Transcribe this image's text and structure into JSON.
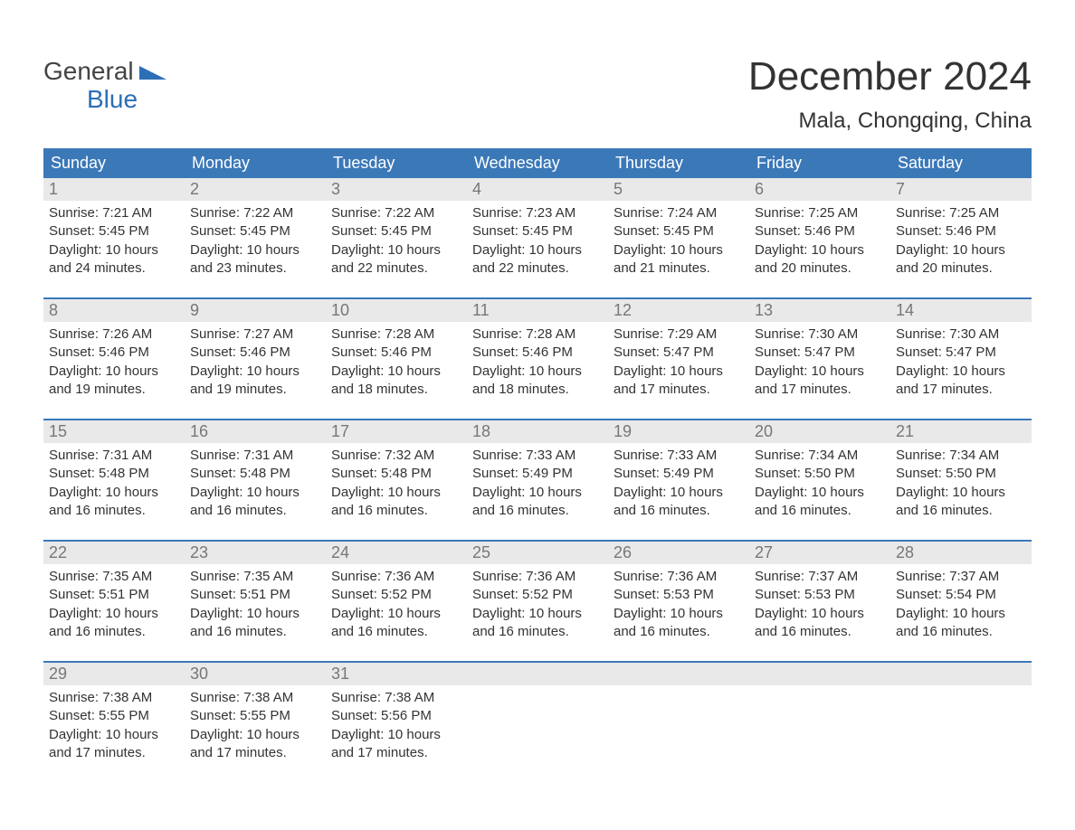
{
  "logo": {
    "text1": "General",
    "text2": "Blue"
  },
  "title": "December 2024",
  "location": "Mala, Chongqing, China",
  "colors": {
    "header_bg": "#3b78b8",
    "header_text": "#ffffff",
    "daynum_bg": "#e9e9e9",
    "daynum_text": "#777777",
    "body_text": "#333333",
    "logo_blue": "#2d6fb6"
  },
  "dayNames": [
    "Sunday",
    "Monday",
    "Tuesday",
    "Wednesday",
    "Thursday",
    "Friday",
    "Saturday"
  ],
  "weeks": [
    [
      {
        "n": "1",
        "sunrise": "Sunrise: 7:21 AM",
        "sunset": "Sunset: 5:45 PM",
        "d1": "Daylight: 10 hours",
        "d2": "and 24 minutes."
      },
      {
        "n": "2",
        "sunrise": "Sunrise: 7:22 AM",
        "sunset": "Sunset: 5:45 PM",
        "d1": "Daylight: 10 hours",
        "d2": "and 23 minutes."
      },
      {
        "n": "3",
        "sunrise": "Sunrise: 7:22 AM",
        "sunset": "Sunset: 5:45 PM",
        "d1": "Daylight: 10 hours",
        "d2": "and 22 minutes."
      },
      {
        "n": "4",
        "sunrise": "Sunrise: 7:23 AM",
        "sunset": "Sunset: 5:45 PM",
        "d1": "Daylight: 10 hours",
        "d2": "and 22 minutes."
      },
      {
        "n": "5",
        "sunrise": "Sunrise: 7:24 AM",
        "sunset": "Sunset: 5:45 PM",
        "d1": "Daylight: 10 hours",
        "d2": "and 21 minutes."
      },
      {
        "n": "6",
        "sunrise": "Sunrise: 7:25 AM",
        "sunset": "Sunset: 5:46 PM",
        "d1": "Daylight: 10 hours",
        "d2": "and 20 minutes."
      },
      {
        "n": "7",
        "sunrise": "Sunrise: 7:25 AM",
        "sunset": "Sunset: 5:46 PM",
        "d1": "Daylight: 10 hours",
        "d2": "and 20 minutes."
      }
    ],
    [
      {
        "n": "8",
        "sunrise": "Sunrise: 7:26 AM",
        "sunset": "Sunset: 5:46 PM",
        "d1": "Daylight: 10 hours",
        "d2": "and 19 minutes."
      },
      {
        "n": "9",
        "sunrise": "Sunrise: 7:27 AM",
        "sunset": "Sunset: 5:46 PM",
        "d1": "Daylight: 10 hours",
        "d2": "and 19 minutes."
      },
      {
        "n": "10",
        "sunrise": "Sunrise: 7:28 AM",
        "sunset": "Sunset: 5:46 PM",
        "d1": "Daylight: 10 hours",
        "d2": "and 18 minutes."
      },
      {
        "n": "11",
        "sunrise": "Sunrise: 7:28 AM",
        "sunset": "Sunset: 5:46 PM",
        "d1": "Daylight: 10 hours",
        "d2": "and 18 minutes."
      },
      {
        "n": "12",
        "sunrise": "Sunrise: 7:29 AM",
        "sunset": "Sunset: 5:47 PM",
        "d1": "Daylight: 10 hours",
        "d2": "and 17 minutes."
      },
      {
        "n": "13",
        "sunrise": "Sunrise: 7:30 AM",
        "sunset": "Sunset: 5:47 PM",
        "d1": "Daylight: 10 hours",
        "d2": "and 17 minutes."
      },
      {
        "n": "14",
        "sunrise": "Sunrise: 7:30 AM",
        "sunset": "Sunset: 5:47 PM",
        "d1": "Daylight: 10 hours",
        "d2": "and 17 minutes."
      }
    ],
    [
      {
        "n": "15",
        "sunrise": "Sunrise: 7:31 AM",
        "sunset": "Sunset: 5:48 PM",
        "d1": "Daylight: 10 hours",
        "d2": "and 16 minutes."
      },
      {
        "n": "16",
        "sunrise": "Sunrise: 7:31 AM",
        "sunset": "Sunset: 5:48 PM",
        "d1": "Daylight: 10 hours",
        "d2": "and 16 minutes."
      },
      {
        "n": "17",
        "sunrise": "Sunrise: 7:32 AM",
        "sunset": "Sunset: 5:48 PM",
        "d1": "Daylight: 10 hours",
        "d2": "and 16 minutes."
      },
      {
        "n": "18",
        "sunrise": "Sunrise: 7:33 AM",
        "sunset": "Sunset: 5:49 PM",
        "d1": "Daylight: 10 hours",
        "d2": "and 16 minutes."
      },
      {
        "n": "19",
        "sunrise": "Sunrise: 7:33 AM",
        "sunset": "Sunset: 5:49 PM",
        "d1": "Daylight: 10 hours",
        "d2": "and 16 minutes."
      },
      {
        "n": "20",
        "sunrise": "Sunrise: 7:34 AM",
        "sunset": "Sunset: 5:50 PM",
        "d1": "Daylight: 10 hours",
        "d2": "and 16 minutes."
      },
      {
        "n": "21",
        "sunrise": "Sunrise: 7:34 AM",
        "sunset": "Sunset: 5:50 PM",
        "d1": "Daylight: 10 hours",
        "d2": "and 16 minutes."
      }
    ],
    [
      {
        "n": "22",
        "sunrise": "Sunrise: 7:35 AM",
        "sunset": "Sunset: 5:51 PM",
        "d1": "Daylight: 10 hours",
        "d2": "and 16 minutes."
      },
      {
        "n": "23",
        "sunrise": "Sunrise: 7:35 AM",
        "sunset": "Sunset: 5:51 PM",
        "d1": "Daylight: 10 hours",
        "d2": "and 16 minutes."
      },
      {
        "n": "24",
        "sunrise": "Sunrise: 7:36 AM",
        "sunset": "Sunset: 5:52 PM",
        "d1": "Daylight: 10 hours",
        "d2": "and 16 minutes."
      },
      {
        "n": "25",
        "sunrise": "Sunrise: 7:36 AM",
        "sunset": "Sunset: 5:52 PM",
        "d1": "Daylight: 10 hours",
        "d2": "and 16 minutes."
      },
      {
        "n": "26",
        "sunrise": "Sunrise: 7:36 AM",
        "sunset": "Sunset: 5:53 PM",
        "d1": "Daylight: 10 hours",
        "d2": "and 16 minutes."
      },
      {
        "n": "27",
        "sunrise": "Sunrise: 7:37 AM",
        "sunset": "Sunset: 5:53 PM",
        "d1": "Daylight: 10 hours",
        "d2": "and 16 minutes."
      },
      {
        "n": "28",
        "sunrise": "Sunrise: 7:37 AM",
        "sunset": "Sunset: 5:54 PM",
        "d1": "Daylight: 10 hours",
        "d2": "and 16 minutes."
      }
    ],
    [
      {
        "n": "29",
        "sunrise": "Sunrise: 7:38 AM",
        "sunset": "Sunset: 5:55 PM",
        "d1": "Daylight: 10 hours",
        "d2": "and 17 minutes."
      },
      {
        "n": "30",
        "sunrise": "Sunrise: 7:38 AM",
        "sunset": "Sunset: 5:55 PM",
        "d1": "Daylight: 10 hours",
        "d2": "and 17 minutes."
      },
      {
        "n": "31",
        "sunrise": "Sunrise: 7:38 AM",
        "sunset": "Sunset: 5:56 PM",
        "d1": "Daylight: 10 hours",
        "d2": "and 17 minutes."
      },
      null,
      null,
      null,
      null
    ]
  ]
}
